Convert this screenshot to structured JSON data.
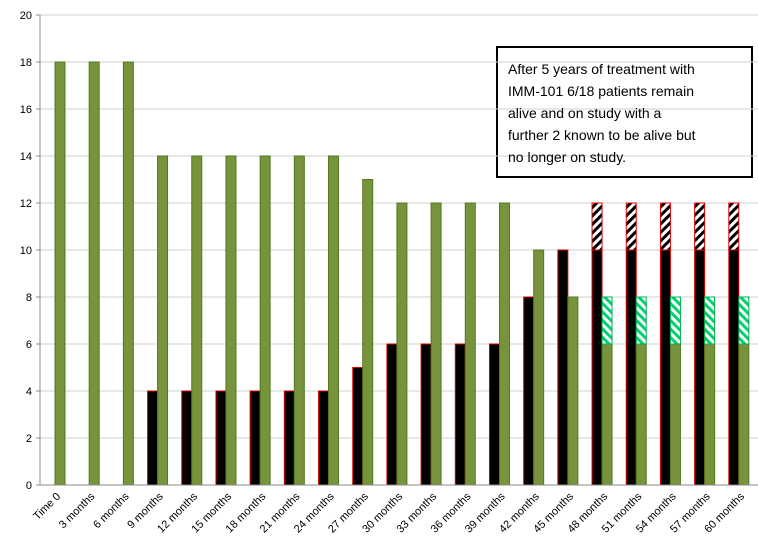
{
  "chart_data": {
    "type": "bar",
    "categories": [
      "Time 0",
      "3 months",
      "6 months",
      "9 months",
      "12 months",
      "15 months",
      "18 months",
      "21 months",
      "24 months",
      "27 months",
      "30 months",
      "33 months",
      "36 months",
      "39 months",
      "42 months",
      "45 months",
      "48 months",
      "51 months",
      "54 months",
      "57 months",
      "60 months"
    ],
    "series": [
      {
        "color": "#000000",
        "stroke": "#e00000",
        "values": [
          null,
          null,
          null,
          4,
          4,
          4,
          4,
          4,
          4,
          5,
          6,
          6,
          6,
          6,
          8,
          10,
          10,
          10,
          10,
          10,
          10
        ]
      },
      {
        "color": "#77933c",
        "stroke": "#4f7a1f",
        "values": [
          18,
          18,
          18,
          14,
          14,
          14,
          14,
          14,
          14,
          13,
          12,
          12,
          12,
          12,
          10,
          8,
          6,
          6,
          6,
          6,
          6
        ]
      },
      {
        "color": "#000000",
        "stroke": "#e00000",
        "pattern": "hatch",
        "stack_on": 0,
        "values": [
          null,
          null,
          null,
          null,
          null,
          null,
          null,
          null,
          null,
          null,
          null,
          null,
          null,
          null,
          null,
          null,
          2,
          2,
          2,
          2,
          2
        ]
      },
      {
        "color": "#00d070",
        "stroke": "#00b050",
        "pattern": "hatch",
        "stack_on": 1,
        "values": [
          null,
          null,
          null,
          null,
          null,
          null,
          null,
          null,
          null,
          null,
          null,
          null,
          null,
          null,
          null,
          null,
          2,
          2,
          2,
          2,
          2
        ]
      }
    ],
    "ylim": [
      0,
      20
    ],
    "yticks": [
      0,
      2,
      4,
      6,
      8,
      10,
      12,
      14,
      16,
      18,
      20
    ],
    "grid": true,
    "annotation": [
      "After 5 years of treatment with",
      "IMM-101  6/18 patients remain",
      "alive and on study with a",
      "further 2 known to be alive but",
      "no longer on study."
    ]
  }
}
